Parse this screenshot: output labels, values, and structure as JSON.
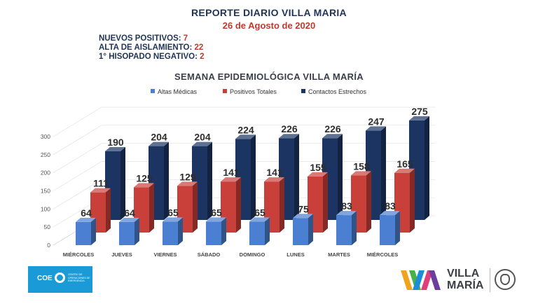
{
  "header": {
    "title": "REPORTE DIARIO VILLA MARIA",
    "date": "26 de Agosto de 2020"
  },
  "stats": [
    {
      "label": "NUEVOS POSITIVOS: ",
      "value": "7"
    },
    {
      "label": "ALTA DE AISLAMIENTO: ",
      "value": "22"
    },
    {
      "label": "1° HISOPADO NEGATIVO: ",
      "value": "2"
    }
  ],
  "chart_data": {
    "type": "bar",
    "title": "SEMANA EPIDEMIOLÓGICA VILLA MARÍA",
    "categories": [
      "MIÉRCOLES",
      "JUEVES",
      "VIERNES",
      "SÁBADO",
      "DOMINGO",
      "LUNES",
      "MARTES",
      "MIÉRCOLES"
    ],
    "series": [
      {
        "name": "Altas Médicas",
        "values": [
          64,
          64,
          65,
          65,
          65,
          75,
          83,
          83
        ],
        "color": "#4a7fd1"
      },
      {
        "name": "Positivos Totales",
        "values": [
          111,
          125,
          129,
          141,
          141,
          155,
          158,
          165
        ],
        "color": "#c9403a"
      },
      {
        "name": "Contactos Estrechos",
        "values": [
          190,
          204,
          204,
          224,
          226,
          226,
          247,
          275
        ],
        "color": "#1b3462"
      }
    ],
    "yticks": [
      0,
      50,
      100,
      150,
      200,
      250,
      300
    ],
    "ylim": [
      0,
      300
    ],
    "legend_position": "top",
    "style": "3d",
    "data_labels": true
  },
  "logos": {
    "coe": {
      "text": "COE",
      "subtitle": "CENTRO DE OPERACIONES DE EMERGENCIA"
    },
    "villa_maria": {
      "line1": "VILLA",
      "line2": "MARÍA"
    },
    "brand_colors": [
      "#f0a31c",
      "#4ab04a",
      "#1a8ed8",
      "#e23f7a",
      "#6a3fa0"
    ]
  }
}
